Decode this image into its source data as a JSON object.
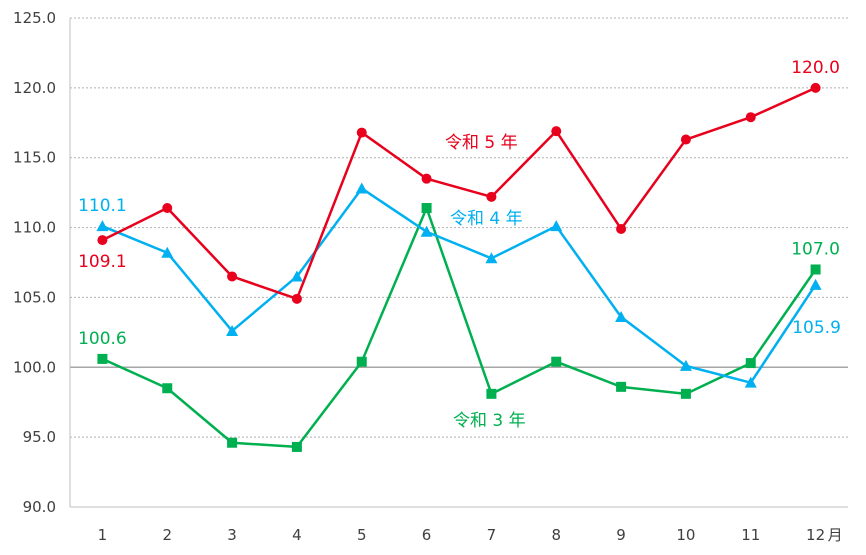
{
  "chart_data": {
    "type": "line",
    "x_unit_label": "月",
    "categories": [
      "1",
      "2",
      "3",
      "4",
      "5",
      "6",
      "7",
      "8",
      "9",
      "10",
      "11",
      "12"
    ],
    "ylim": [
      90.0,
      125.0
    ],
    "ytick_step": 5,
    "y_tick_labels": [
      "90.0",
      "95.0",
      "100.0",
      "105.0",
      "110.0",
      "115.0",
      "120.0",
      "125.0"
    ],
    "grid": true,
    "baseline": 100,
    "colors": {
      "r5": "#e8001c",
      "r4": "#00b0f0",
      "r3": "#00b050"
    },
    "series": [
      {
        "id": "r5",
        "name": "令和 5 年",
        "marker": "circle",
        "values": [
          109.1,
          111.4,
          106.5,
          104.9,
          116.8,
          113.5,
          112.2,
          116.9,
          109.9,
          116.3,
          117.9,
          120.0
        ]
      },
      {
        "id": "r4",
        "name": "令和 4 年",
        "marker": "triangle",
        "values": [
          110.1,
          108.2,
          102.6,
          106.5,
          112.8,
          109.7,
          107.8,
          110.1,
          103.6,
          100.1,
          98.9,
          105.9
        ]
      },
      {
        "id": "r3",
        "name": "令和 3 年",
        "marker": "square",
        "values": [
          100.6,
          98.5,
          94.6,
          94.3,
          100.4,
          111.4,
          98.1,
          100.4,
          98.6,
          98.1,
          100.3,
          107.0
        ]
      }
    ],
    "data_labels": [
      {
        "series": "r5",
        "index": 0,
        "text": "109.1",
        "pos": "below"
      },
      {
        "series": "r5",
        "index": 11,
        "text": "120.0",
        "pos": "above"
      },
      {
        "series": "r4",
        "index": 0,
        "text": "110.1",
        "pos": "above"
      },
      {
        "series": "r4",
        "index": 11,
        "text": "105.9",
        "pos": "below-right"
      },
      {
        "series": "r3",
        "index": 0,
        "text": "100.6",
        "pos": "above"
      },
      {
        "series": "r3",
        "index": 11,
        "text": "107.0",
        "pos": "above"
      }
    ]
  }
}
